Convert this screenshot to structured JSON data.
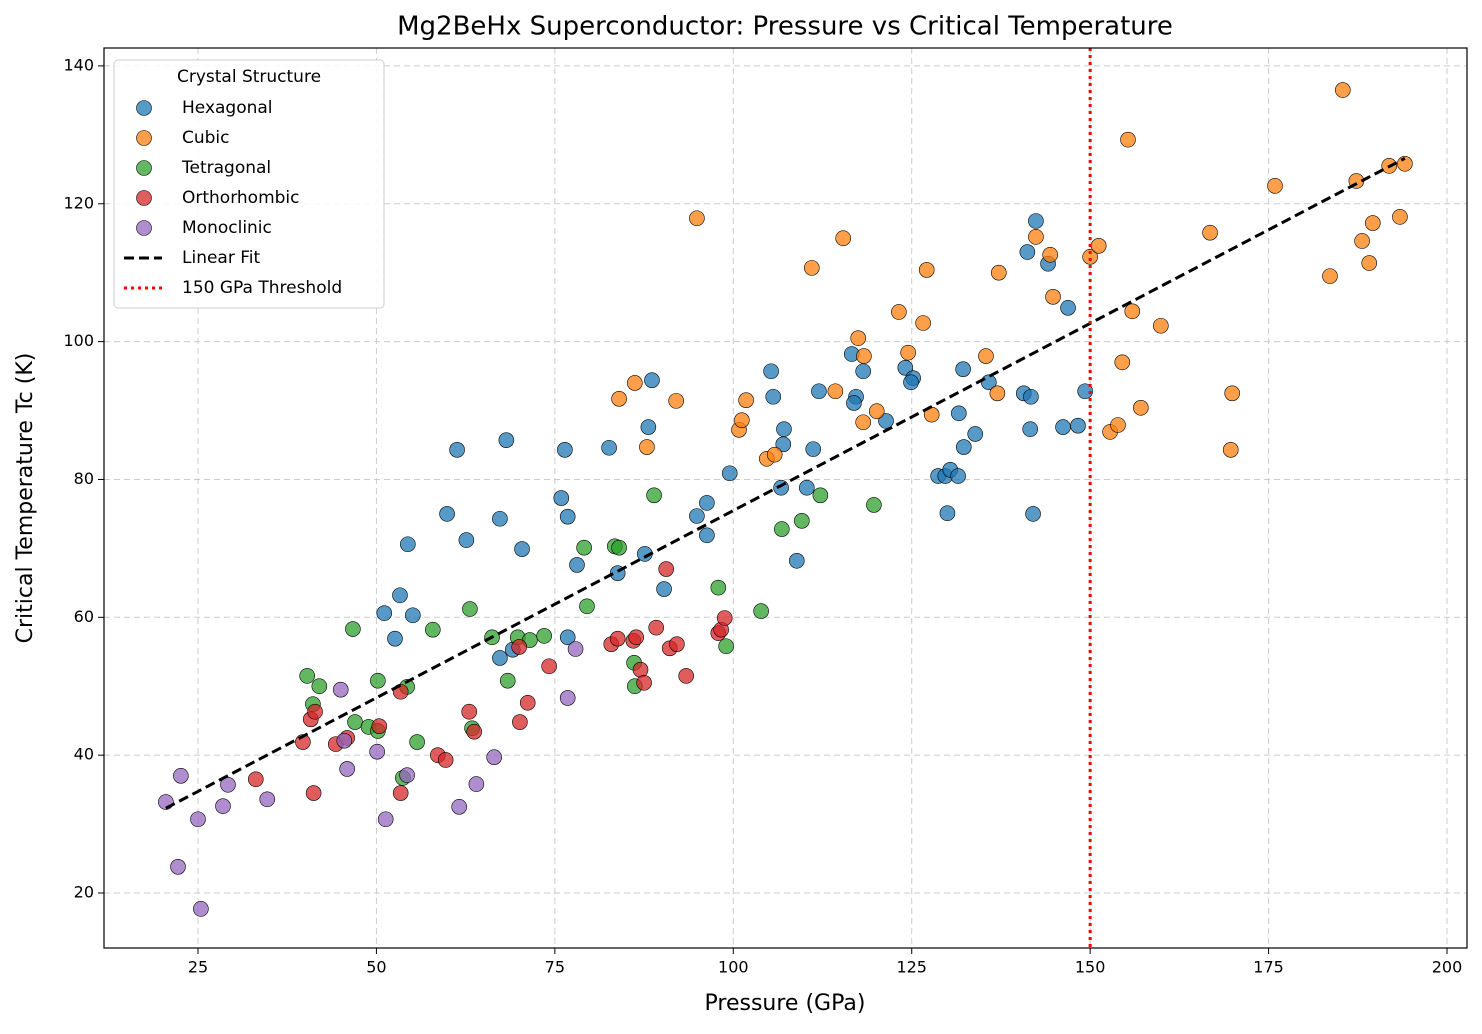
{
  "chart_data": {
    "type": "scatter",
    "title": "Mg2BeHx Superconductor: Pressure vs Critical Temperature",
    "x_label": "Pressure (GPa)",
    "y_label": "Critical Temperature Tc (K)",
    "legend_title": "Crystal Structure",
    "legend_position": "upper left",
    "grid": true,
    "xlim": [
      11.83,
      202.8
    ],
    "ylim": [
      12.02,
      142.6
    ],
    "xticks": [
      25,
      50,
      75,
      100,
      125,
      150,
      175,
      200
    ],
    "yticks": [
      20,
      40,
      60,
      80,
      100,
      120,
      140
    ],
    "series": [
      {
        "name": "Hexagonal",
        "color": "#1f77b4",
        "x": [
          61.3,
          68.2,
          59.9,
          62.6,
          54.4,
          67.3,
          70.4,
          53.3,
          51.1,
          55.1,
          52.6,
          76.4,
          75.9,
          76.8,
          78.1,
          76.8,
          67.3,
          69.1,
          82.6,
          88.6,
          88.1,
          87.6,
          83.8,
          90.3,
          94.9,
          96.3,
          96.3,
          99.5,
          105.3,
          105.6,
          107.1,
          107.0,
          106.7,
          110.3,
          111.2,
          108.9,
          112.0,
          116.6,
          117.2,
          116.9,
          118.2,
          121.4,
          124.1,
          125.2,
          124.9,
          132.2,
          131.6,
          132.3,
          133.9,
          128.7,
          129.7,
          130.4,
          131.5,
          130.0,
          135.8,
          140.7,
          141.7,
          141.6,
          142.0,
          141.2,
          142.4,
          144.1,
          146.9,
          146.2,
          148.3,
          149.3
        ],
        "values": [
          84.3,
          85.7,
          75.0,
          71.2,
          70.6,
          74.3,
          69.9,
          63.2,
          60.6,
          60.3,
          56.9,
          84.3,
          77.3,
          74.6,
          67.6,
          57.1,
          54.1,
          55.3,
          84.6,
          94.4,
          87.6,
          69.2,
          66.4,
          64.1,
          74.7,
          76.6,
          71.9,
          80.9,
          95.7,
          92.0,
          87.3,
          85.1,
          78.8,
          78.8,
          84.4,
          68.2,
          92.8,
          98.2,
          92.0,
          91.1,
          95.7,
          88.5,
          96.2,
          94.7,
          94.1,
          96.0,
          89.6,
          84.7,
          86.6,
          80.5,
          80.5,
          81.4,
          80.5,
          75.1,
          94.1,
          92.5,
          92.0,
          87.3,
          75.0,
          113.0,
          117.5,
          111.3,
          104.9,
          87.6,
          87.8,
          92.8
        ]
      },
      {
        "name": "Cubic",
        "color": "#ff7f0e",
        "x": [
          84.0,
          86.2,
          87.9,
          92.0,
          94.9,
          100.8,
          101.2,
          101.8,
          104.7,
          105.8,
          111.0,
          114.3,
          115.4,
          117.5,
          118.3,
          118.2,
          120.1,
          123.2,
          124.5,
          126.6,
          127.1,
          127.8,
          135.4,
          137.0,
          137.2,
          142.4,
          144.4,
          144.8,
          150.0,
          151.2,
          152.8,
          153.9,
          154.5,
          155.3,
          155.9,
          157.1,
          159.9,
          166.8,
          169.9,
          169.7,
          175.9,
          183.6,
          185.4,
          187.3,
          188.1,
          189.1,
          189.6,
          191.9,
          193.4,
          194.1
        ],
        "values": [
          91.7,
          94.0,
          84.7,
          91.4,
          117.9,
          87.2,
          88.6,
          91.5,
          83.0,
          83.6,
          110.7,
          92.8,
          115.0,
          100.5,
          97.9,
          88.3,
          89.9,
          104.3,
          98.4,
          102.7,
          110.4,
          89.4,
          97.9,
          92.5,
          110.0,
          115.2,
          112.6,
          106.5,
          112.3,
          113.9,
          86.9,
          87.9,
          97.0,
          129.3,
          104.4,
          90.4,
          102.3,
          115.8,
          92.5,
          84.3,
          122.6,
          109.5,
          136.5,
          123.3,
          114.6,
          111.4,
          117.2,
          125.5,
          118.1,
          125.8
        ]
      },
      {
        "name": "Tetragonal",
        "color": "#2ca02c",
        "x": [
          40.3,
          42.0,
          41.1,
          46.7,
          47.0,
          48.9,
          50.2,
          50.2,
          54.3,
          53.7,
          55.7,
          57.9,
          63.1,
          63.4,
          66.2,
          68.4,
          69.8,
          71.5,
          73.5,
          79.1,
          79.5,
          83.4,
          84.0,
          86.1,
          86.2,
          88.9,
          97.9,
          99.0,
          103.9,
          106.8,
          109.6,
          112.2,
          119.7
        ],
        "values": [
          51.5,
          50.0,
          47.4,
          58.3,
          44.8,
          44.1,
          50.8,
          43.5,
          49.9,
          36.7,
          41.9,
          58.2,
          61.2,
          43.9,
          57.1,
          50.8,
          57.1,
          56.7,
          57.3,
          70.1,
          61.6,
          70.3,
          70.1,
          53.4,
          50.0,
          77.7,
          64.3,
          55.8,
          60.9,
          72.8,
          74.0,
          77.7,
          76.3
        ]
      },
      {
        "name": "Orthorhombic",
        "color": "#d62728",
        "x": [
          33.1,
          39.7,
          40.8,
          41.4,
          41.2,
          44.3,
          45.9,
          50.4,
          53.4,
          53.4,
          58.6,
          59.7,
          63.0,
          63.7,
          70.0,
          70.1,
          71.2,
          74.2,
          82.9,
          83.8,
          86.0,
          86.4,
          87.0,
          87.5,
          89.2,
          90.6,
          91.1,
          92.1,
          93.4,
          97.9,
          98.3,
          98.8
        ],
        "values": [
          36.5,
          41.9,
          45.2,
          46.3,
          34.5,
          41.6,
          42.5,
          44.2,
          49.2,
          34.5,
          40.0,
          39.3,
          46.3,
          43.4,
          55.7,
          44.8,
          47.6,
          52.9,
          56.1,
          56.9,
          56.6,
          57.1,
          52.4,
          50.5,
          58.5,
          67.0,
          55.5,
          56.1,
          51.5,
          57.7,
          58.2,
          59.9
        ]
      },
      {
        "name": "Monoclinic",
        "color": "#9467bd",
        "x": [
          20.5,
          22.6,
          22.2,
          25.0,
          25.4,
          28.5,
          29.2,
          34.7,
          45.0,
          45.5,
          45.9,
          50.1,
          51.3,
          54.3,
          61.6,
          64.0,
          66.5,
          76.8,
          77.9
        ],
        "values": [
          33.2,
          37.0,
          23.8,
          30.7,
          17.7,
          32.6,
          35.7,
          33.6,
          49.5,
          42.1,
          38.0,
          40.5,
          30.7,
          37.1,
          32.5,
          35.8,
          39.7,
          48.3,
          55.4
        ]
      }
    ],
    "fit": {
      "name": "Linear Fit",
      "color": "#000000",
      "x": [
        20.5,
        194.1
      ],
      "values": [
        32.3,
        126.6
      ]
    },
    "threshold": {
      "name": "150 GPa Threshold",
      "color": "#ff0000",
      "x": 150
    }
  }
}
